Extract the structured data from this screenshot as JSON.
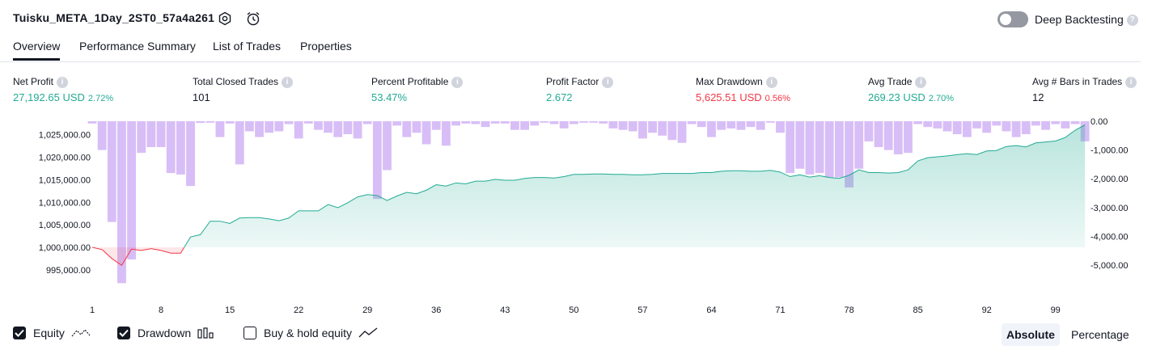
{
  "header": {
    "strategy_name": "Tuisku_META_1Day_2ST0_57a4a261",
    "deep_backtesting_label": "Deep Backtesting",
    "deep_backtesting_on": false
  },
  "tabs": [
    {
      "label": "Overview",
      "active": true
    },
    {
      "label": "Performance Summary",
      "active": false
    },
    {
      "label": "List of Trades",
      "active": false
    },
    {
      "label": "Properties",
      "active": false
    }
  ],
  "metrics": [
    {
      "label": "Net Profit",
      "value": "27,192.65 USD",
      "pct": "2.72%",
      "color": "green"
    },
    {
      "label": "Total Closed Trades",
      "value": "101",
      "pct": "",
      "color": "dark"
    },
    {
      "label": "Percent Profitable",
      "value": "53.47%",
      "pct": "",
      "color": "green"
    },
    {
      "label": "Profit Factor",
      "value": "2.672",
      "pct": "",
      "color": "green"
    },
    {
      "label": "Max Drawdown",
      "value": "5,625.51 USD",
      "pct": "0.56%",
      "color": "red"
    },
    {
      "label": "Avg Trade",
      "value": "269.23 USD",
      "pct": "2.70%",
      "color": "green"
    },
    {
      "label": "Avg # Bars in Trades",
      "value": "12",
      "pct": "",
      "color": "dark"
    }
  ],
  "legend": {
    "equity": {
      "label": "Equity",
      "checked": true
    },
    "drawdown": {
      "label": "Drawdown",
      "checked": true
    },
    "buy_hold": {
      "label": "Buy & hold equity",
      "checked": false
    }
  },
  "view_buttons": {
    "absolute": "Absolute",
    "percentage": "Percentage",
    "active": "absolute"
  },
  "colors": {
    "equity_line": "#22ab94",
    "equity_negative": "#f23645",
    "drawdown_bar": "#d1b3f5",
    "profit_green": "#22ab94",
    "loss_red": "#f23645"
  },
  "chart_data": {
    "type": "area",
    "equity": {
      "x": [
        1,
        2,
        3,
        4,
        5,
        6,
        7,
        8,
        9,
        10,
        11,
        12,
        13,
        14,
        15,
        16,
        17,
        18,
        19,
        20,
        21,
        22,
        23,
        24,
        25,
        26,
        27,
        28,
        29,
        30,
        31,
        32,
        33,
        34,
        35,
        36,
        37,
        38,
        39,
        40,
        41,
        42,
        43,
        44,
        45,
        46,
        47,
        48,
        49,
        50,
        51,
        52,
        53,
        54,
        55,
        56,
        57,
        58,
        59,
        60,
        61,
        62,
        63,
        64,
        65,
        66,
        67,
        68,
        69,
        70,
        71,
        72,
        73,
        74,
        75,
        76,
        77,
        78,
        79,
        80,
        81,
        82,
        83,
        84,
        85,
        86,
        87,
        88,
        89,
        90,
        91,
        92,
        93,
        94,
        95,
        96,
        97,
        98,
        99,
        100,
        101,
        102
      ],
      "y": [
        1000000,
        999500,
        997500,
        996000,
        999600,
        999300,
        999700,
        999300,
        998700,
        998700,
        1002300,
        1002800,
        1005800,
        1005800,
        1005300,
        1006500,
        1006600,
        1006600,
        1006300,
        1005900,
        1006500,
        1008100,
        1008100,
        1008100,
        1009500,
        1008800,
        1009900,
        1011200,
        1011700,
        1011500,
        1010400,
        1011400,
        1012200,
        1011900,
        1012700,
        1013900,
        1013600,
        1014300,
        1014100,
        1014700,
        1014700,
        1015100,
        1014900,
        1014900,
        1015300,
        1015500,
        1015500,
        1015400,
        1015700,
        1016200,
        1016200,
        1016300,
        1016300,
        1016200,
        1016200,
        1016100,
        1016100,
        1016200,
        1016400,
        1016400,
        1016400,
        1016400,
        1016600,
        1016600,
        1016900,
        1017000,
        1017000,
        1016900,
        1016900,
        1017100,
        1016700,
        1015700,
        1016100,
        1015600,
        1015900,
        1015500,
        1015300,
        1016000,
        1017200,
        1016600,
        1016600,
        1016500,
        1016600,
        1017200,
        1019200,
        1019900,
        1020100,
        1020300,
        1020600,
        1020800,
        1020600,
        1021400,
        1021500,
        1022400,
        1022600,
        1022300,
        1023200,
        1023400,
        1023600,
        1024400,
        1026000,
        1027192.65
      ]
    },
    "drawdown": {
      "x": [
        1,
        2,
        3,
        4,
        5,
        6,
        7,
        8,
        9,
        10,
        11,
        12,
        13,
        14,
        15,
        16,
        17,
        18,
        19,
        20,
        21,
        22,
        23,
        24,
        25,
        26,
        27,
        28,
        29,
        30,
        31,
        32,
        33,
        34,
        35,
        36,
        37,
        38,
        39,
        40,
        41,
        42,
        43,
        44,
        45,
        46,
        47,
        48,
        49,
        50,
        51,
        52,
        53,
        54,
        55,
        56,
        57,
        58,
        59,
        60,
        61,
        62,
        63,
        64,
        65,
        66,
        67,
        68,
        69,
        70,
        71,
        72,
        73,
        74,
        75,
        76,
        77,
        78,
        79,
        80,
        81,
        82,
        83,
        84,
        85,
        86,
        87,
        88,
        89,
        90,
        91,
        92,
        93,
        94,
        95,
        96,
        97,
        98,
        99,
        100,
        101,
        102
      ],
      "y": [
        -80,
        -1000,
        -3500,
        -5625.51,
        -4800,
        -1100,
        -900,
        -900,
        -1800,
        -1850,
        -2250,
        -60,
        -50,
        -550,
        -80,
        -1500,
        -350,
        -550,
        -400,
        -350,
        -100,
        -600,
        -80,
        -300,
        -400,
        -550,
        -450,
        -600,
        -100,
        -2700,
        -1700,
        -150,
        -550,
        -400,
        -800,
        -300,
        -850,
        -150,
        -80,
        -100,
        -200,
        -80,
        -80,
        -300,
        -300,
        -150,
        -50,
        -100,
        -250,
        -100,
        -50,
        -50,
        -80,
        -250,
        -300,
        -350,
        -600,
        -400,
        -500,
        -650,
        -750,
        -100,
        -200,
        -550,
        -300,
        -250,
        -300,
        -200,
        -300,
        -50,
        -400,
        -1800,
        -1650,
        -1850,
        -1800,
        -1950,
        -1950,
        -2300,
        -1650,
        -700,
        -900,
        -1000,
        -1150,
        -1100,
        -100,
        -200,
        -250,
        -350,
        -450,
        -550,
        -250,
        -400,
        -150,
        -350,
        -550,
        -450,
        -150,
        -300,
        -100,
        -250,
        -100,
        -700
      ]
    },
    "x_ticks": [
      "1",
      "8",
      "15",
      "22",
      "29",
      "36",
      "43",
      "50",
      "57",
      "64",
      "71",
      "78",
      "85",
      "92",
      "99"
    ],
    "y_left_ticks": [
      "1,025,000.00",
      "1,020,000.00",
      "1,015,000.00",
      "1,010,000.00",
      "1,005,000.00",
      "1,000,000.00",
      "995,000.00"
    ],
    "y_right_ticks": [
      "0.00",
      "-1,000.00",
      "-2,000.00",
      "-3,000.00",
      "-4,000.00",
      "-5,000.00"
    ],
    "ylim_left": [
      993000,
      1028000
    ],
    "ylim_right": [
      -5475,
      0
    ],
    "baseline": 1000000,
    "title": "",
    "grid": false
  }
}
